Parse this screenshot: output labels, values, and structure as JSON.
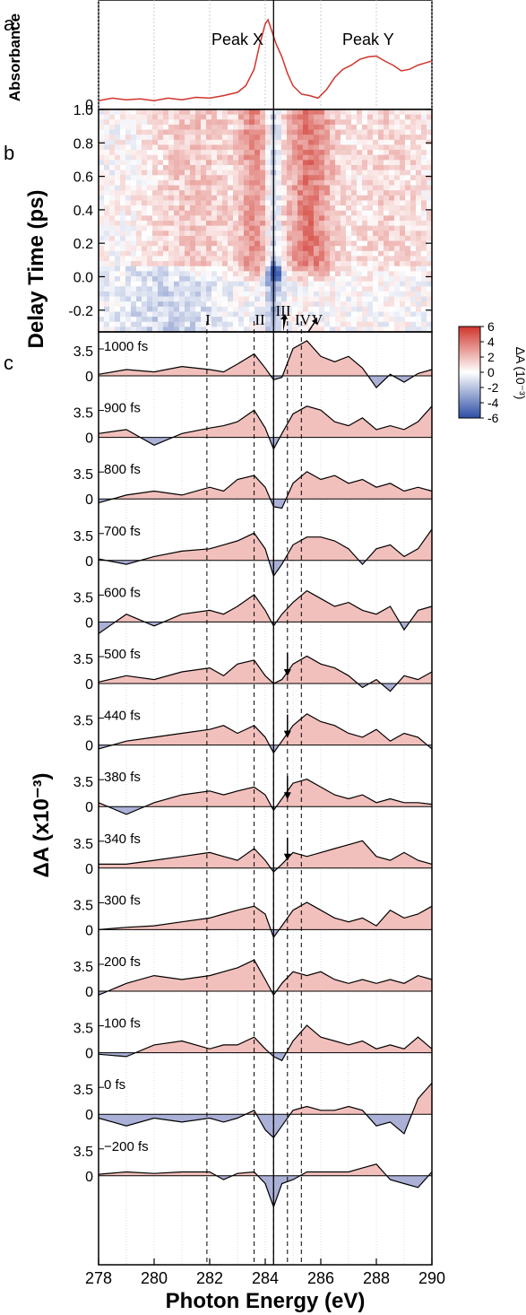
{
  "chart_data": [
    {
      "type": "line",
      "panel_label": "a",
      "ylabel": "Absorbance",
      "y_tick": "0",
      "annotations": [
        "Peak X",
        "Peak Y"
      ],
      "x": [
        278,
        278.5,
        279,
        279.5,
        280,
        280.5,
        281,
        281.5,
        282,
        282.5,
        283,
        283.3,
        283.6,
        283.8,
        284,
        284.1,
        284.2,
        284.4,
        284.6,
        284.8,
        285,
        285.3,
        285.6,
        285.9,
        286.2,
        286.5,
        286.8,
        287.1,
        287.4,
        287.7,
        288,
        288.3,
        288.6,
        288.9,
        289.2,
        289.5,
        289.8,
        290
      ],
      "y": [
        0.02,
        0.05,
        0.03,
        0.04,
        0.02,
        0.05,
        0.03,
        0.06,
        0.05,
        0.08,
        0.12,
        0.2,
        0.4,
        0.7,
        0.95,
        1.0,
        0.9,
        0.7,
        0.55,
        0.35,
        0.2,
        0.1,
        0.08,
        0.05,
        0.15,
        0.3,
        0.4,
        0.45,
        0.52,
        0.55,
        0.56,
        0.5,
        0.45,
        0.38,
        0.4,
        0.45,
        0.48,
        0.5
      ]
    },
    {
      "type": "heatmap",
      "panel_label": "b",
      "ylabel": "Delay Time (ps)",
      "y_ticks": [
        "1.0",
        "0.8",
        "0.6",
        "0.4",
        "0.2",
        "0.0",
        "-0.2"
      ],
      "colorbar": {
        "label": "ΔA (10⁻³)",
        "ticks": [
          "6",
          "4",
          "2",
          "0",
          "-2",
          "-4",
          "-6"
        ],
        "range": [
          -6,
          6
        ],
        "colors": {
          "negative": "#2d4ea6",
          "zero": "#ffffff",
          "positive": "#d0352c"
        }
      },
      "markers": [
        "I",
        "II",
        "III",
        "IV",
        "V"
      ],
      "marker_energies": [
        281.9,
        283.6,
        284.3,
        284.8,
        285.3
      ],
      "x_range": [
        278,
        290
      ],
      "y_range": [
        -0.33,
        1.0
      ]
    },
    {
      "type": "area",
      "panel_label": "c",
      "ylabel": "ΔA (x10⁻³)",
      "xlabel": "Photon Energy (eV)",
      "xlim": [
        278,
        290
      ],
      "x_ticks": [
        "278",
        "280",
        "282",
        "284",
        "286",
        "288",
        "290"
      ],
      "y_tick_labels": [
        "3.5",
        "0"
      ],
      "positive_color": "#f2c0bc",
      "negative_color": "#aab0d6",
      "series": [
        {
          "name": "1000 fs",
          "x": [
            278,
            279,
            280,
            281,
            282,
            282.5,
            283,
            283.6,
            284,
            284.3,
            284.6,
            285,
            285.5,
            286,
            286.5,
            287,
            287.5,
            288,
            288.5,
            289,
            289.5,
            290
          ],
          "values": [
            0.2,
            0.8,
            0.5,
            1.2,
            0.8,
            0.5,
            1.5,
            2.8,
            1.0,
            -0.5,
            -0.2,
            3.5,
            4.5,
            2.5,
            1.8,
            2.5,
            1.0,
            -1.5,
            0.2,
            -0.8,
            0.3,
            0.8
          ]
        },
        {
          "name": "900 fs",
          "x": [
            278,
            279,
            280,
            281,
            282,
            282.5,
            283,
            283.6,
            284,
            284.3,
            284.6,
            285,
            285.5,
            286,
            286.5,
            287,
            287.5,
            288,
            288.5,
            289,
            289.5,
            290
          ],
          "values": [
            0.5,
            1.0,
            -1.0,
            0.5,
            1.2,
            1.5,
            2.0,
            3.5,
            1.2,
            -1.5,
            0.5,
            3.0,
            4.0,
            3.5,
            2.0,
            1.5,
            2.5,
            1.0,
            1.5,
            1.0,
            2.0,
            4.0
          ]
        },
        {
          "name": "800 fs",
          "x": [
            278,
            279,
            280,
            281,
            282,
            282.5,
            283,
            283.6,
            284,
            284.3,
            284.6,
            285,
            285.5,
            286,
            286.5,
            287,
            287.5,
            288,
            288.5,
            289,
            289.5,
            290
          ],
          "values": [
            -0.5,
            0.5,
            1.0,
            0.5,
            1.5,
            1.0,
            2.5,
            3.0,
            1.5,
            -1.0,
            -1.2,
            2.0,
            3.5,
            2.5,
            3.0,
            2.0,
            2.5,
            1.5,
            2.0,
            1.0,
            1.5,
            1.0
          ]
        },
        {
          "name": "700 fs",
          "x": [
            278,
            279,
            280,
            281,
            282,
            282.5,
            283,
            283.6,
            284,
            284.3,
            284.6,
            285,
            285.5,
            286,
            286.5,
            287,
            287.5,
            288,
            288.5,
            289,
            289.5,
            290
          ],
          "values": [
            0.2,
            -0.5,
            0.5,
            1.2,
            1.5,
            2.0,
            2.5,
            3.5,
            1.5,
            -2.0,
            -0.5,
            2.0,
            3.0,
            3.0,
            2.5,
            1.5,
            -0.5,
            1.5,
            2.0,
            0.5,
            1.5,
            4.0
          ]
        },
        {
          "name": "600 fs",
          "x": [
            278,
            279,
            280,
            281,
            282,
            282.5,
            283,
            283.6,
            284,
            284.3,
            284.6,
            285,
            285.5,
            286,
            286.5,
            287,
            287.5,
            288,
            288.5,
            289,
            289.5,
            290
          ],
          "values": [
            -1.5,
            1.0,
            -0.5,
            1.0,
            1.5,
            1.0,
            2.0,
            3.5,
            1.5,
            -0.5,
            1.0,
            2.5,
            4.0,
            3.0,
            2.0,
            2.5,
            1.5,
            1.0,
            2.0,
            -1.0,
            1.5,
            2.0
          ]
        },
        {
          "name": "500 fs",
          "x": [
            278,
            279,
            280,
            281,
            282,
            282.5,
            283,
            283.6,
            284,
            284.3,
            284.6,
            285,
            285.5,
            286,
            286.5,
            287,
            287.5,
            288,
            288.5,
            289,
            289.5,
            290
          ],
          "values": [
            0.2,
            1.0,
            0.5,
            1.5,
            2.0,
            1.0,
            2.5,
            3.0,
            1.0,
            0.0,
            0.5,
            2.5,
            3.5,
            2.5,
            2.0,
            1.0,
            -0.5,
            0.5,
            -1.0,
            1.0,
            0.5,
            1.5
          ]
        },
        {
          "name": "440 fs",
          "x": [
            278,
            279,
            280,
            281,
            282,
            282.5,
            283,
            283.6,
            284,
            284.3,
            284.6,
            285,
            285.5,
            286,
            286.5,
            287,
            287.5,
            288,
            288.5,
            289,
            289.5,
            290
          ],
          "values": [
            -0.5,
            0.5,
            1.0,
            1.5,
            2.0,
            2.5,
            1.5,
            2.5,
            1.0,
            -1.0,
            0.5,
            2.5,
            4.0,
            3.0,
            2.5,
            1.5,
            1.0,
            2.0,
            0.5,
            1.5,
            1.0,
            -0.5
          ]
        },
        {
          "name": "380 fs",
          "x": [
            278,
            279,
            280,
            281,
            282,
            282.5,
            283,
            283.6,
            284,
            284.3,
            284.6,
            285,
            285.5,
            286,
            286.5,
            287,
            287.5,
            288,
            288.5,
            289,
            289.5,
            290
          ],
          "values": [
            0.5,
            -1.0,
            0.5,
            1.5,
            2.0,
            1.5,
            2.0,
            2.5,
            1.5,
            -0.5,
            1.0,
            3.0,
            3.5,
            2.5,
            1.5,
            1.0,
            1.5,
            0.5,
            1.0,
            0.5,
            0.5,
            0.3
          ]
        },
        {
          "name": "340 fs",
          "x": [
            278,
            279,
            280,
            281,
            282,
            282.5,
            283,
            283.6,
            284,
            284.3,
            284.6,
            285,
            285.5,
            286,
            286.5,
            287,
            287.5,
            288,
            288.5,
            289,
            289.5,
            290
          ],
          "values": [
            0.5,
            0.5,
            1.0,
            1.5,
            2.0,
            1.5,
            1.0,
            2.5,
            1.0,
            -0.5,
            0.5,
            2.0,
            1.5,
            2.0,
            2.5,
            3.0,
            3.5,
            1.5,
            1.0,
            2.0,
            1.0,
            0.5
          ]
        },
        {
          "name": "300 fs",
          "x": [
            278,
            279,
            280,
            281,
            282,
            282.5,
            283,
            283.6,
            284,
            284.3,
            284.6,
            285,
            285.5,
            286,
            286.5,
            287,
            287.5,
            288,
            288.5,
            289,
            289.5,
            290
          ],
          "values": [
            0.0,
            0.3,
            0.5,
            1.0,
            1.5,
            2.0,
            2.5,
            3.0,
            2.0,
            -1.0,
            0.5,
            2.5,
            3.5,
            2.5,
            1.5,
            1.0,
            1.5,
            0.5,
            2.5,
            1.5,
            2.0,
            3.0
          ]
        },
        {
          "name": "200 fs",
          "x": [
            278,
            279,
            280,
            281,
            282,
            282.5,
            283,
            283.6,
            284,
            284.3,
            284.6,
            285,
            285.5,
            286,
            286.5,
            287,
            287.5,
            288,
            288.5,
            289,
            289.5,
            290
          ],
          "values": [
            -0.5,
            1.0,
            2.0,
            1.5,
            2.0,
            2.5,
            3.0,
            4.0,
            1.5,
            -0.5,
            1.0,
            2.5,
            2.0,
            2.5,
            1.5,
            1.0,
            1.5,
            1.0,
            1.5,
            1.0,
            2.0,
            1.5
          ]
        },
        {
          "name": "100 fs",
          "x": [
            278,
            279,
            280,
            281,
            282,
            282.5,
            283,
            283.6,
            284,
            284.3,
            284.6,
            285,
            285.5,
            286,
            286.5,
            287,
            287.5,
            288,
            288.5,
            289,
            289.5,
            290
          ],
          "values": [
            -0.2,
            -0.5,
            1.0,
            1.5,
            0.5,
            1.0,
            1.0,
            2.0,
            0.5,
            -0.5,
            -1.0,
            1.5,
            3.5,
            2.0,
            1.5,
            1.0,
            1.5,
            0.5,
            1.0,
            0.5,
            2.0,
            0.5
          ]
        },
        {
          "name": "0 fs",
          "x": [
            278,
            279,
            280,
            281,
            282,
            282.5,
            283,
            283.6,
            284,
            284.3,
            284.6,
            285,
            285.5,
            286,
            286.5,
            287,
            287.5,
            288,
            288.5,
            289,
            289.5,
            290
          ],
          "values": [
            -0.5,
            -1.5,
            -0.5,
            -1.0,
            -0.5,
            -1.0,
            -0.5,
            0.5,
            -2.0,
            -3.0,
            -1.5,
            0.5,
            1.0,
            0.5,
            0.5,
            1.0,
            0.5,
            -1.5,
            -1.0,
            -2.5,
            2.0,
            4.0
          ]
        },
        {
          "name": "−200 fs",
          "x": [
            278,
            279,
            280,
            281,
            282,
            282.5,
            283,
            283.6,
            284,
            284.3,
            284.6,
            285,
            285.5,
            286,
            286.5,
            287,
            287.5,
            288,
            288.5,
            289,
            289.5,
            290
          ],
          "values": [
            0.2,
            0.5,
            0.3,
            0.5,
            0.5,
            -0.5,
            0.3,
            0.5,
            -1.0,
            -4.0,
            -1.0,
            -0.5,
            0.5,
            0.5,
            0.5,
            0.5,
            1.0,
            1.5,
            -0.5,
            -1.0,
            -1.5,
            0.5
          ]
        }
      ],
      "arrow_series": [
        "500 fs",
        "440 fs",
        "380 fs",
        "340 fs"
      ],
      "arrow_energy": 284.8
    }
  ]
}
